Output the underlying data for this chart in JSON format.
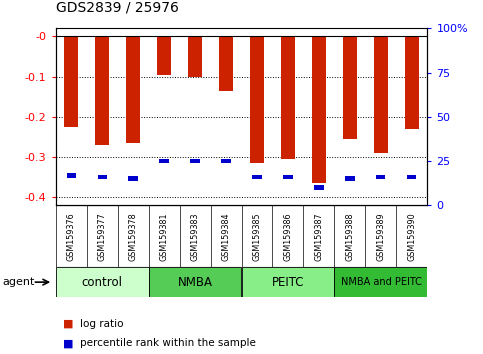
{
  "title": "GDS2839 / 25976",
  "samples": [
    "GSM159376",
    "GSM159377",
    "GSM159378",
    "GSM159381",
    "GSM159383",
    "GSM159384",
    "GSM159385",
    "GSM159386",
    "GSM159387",
    "GSM159388",
    "GSM159389",
    "GSM159390"
  ],
  "log_ratio": [
    -0.225,
    -0.27,
    -0.265,
    -0.095,
    -0.102,
    -0.135,
    -0.315,
    -0.305,
    -0.365,
    -0.255,
    -0.29,
    -0.23
  ],
  "percentile_rank": [
    17,
    16,
    15,
    25,
    25,
    25,
    16,
    16,
    10,
    15,
    16,
    16
  ],
  "groups": [
    {
      "label": "control",
      "start": 0,
      "end": 3,
      "color": "#ccffcc"
    },
    {
      "label": "NMBA",
      "start": 3,
      "end": 6,
      "color": "#55cc55"
    },
    {
      "label": "PEITC",
      "start": 6,
      "end": 9,
      "color": "#88ee88"
    },
    {
      "label": "NMBA and PEITC",
      "start": 9,
      "end": 12,
      "color": "#33bb33"
    }
  ],
  "ylim_left": [
    -0.42,
    0.02
  ],
  "ylim_right": [
    -5.25,
    2.625
  ],
  "yticks_left": [
    0.0,
    -0.1,
    -0.2,
    -0.3,
    -0.4
  ],
  "yticks_right": [
    100,
    75,
    50,
    25,
    0
  ],
  "bar_color": "#cc2200",
  "pct_color": "#0000cc",
  "bar_width": 0.45,
  "bg_color": "#ffffff",
  "tick_bg": "#cccccc",
  "agent_arrow_label": "agent",
  "group_colors": [
    "#ccffcc",
    "#55cc55",
    "#88ee88",
    "#33bb33"
  ]
}
